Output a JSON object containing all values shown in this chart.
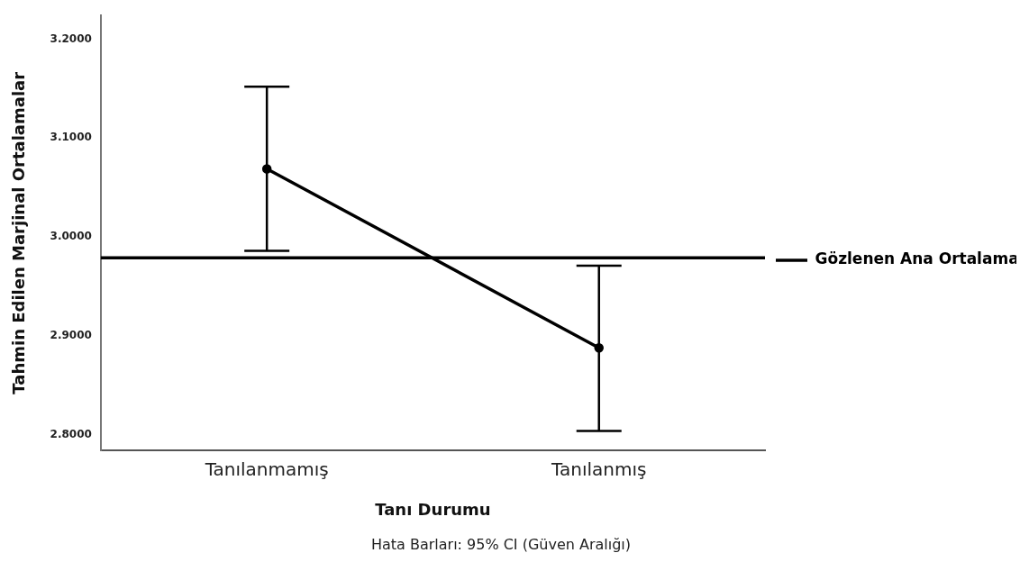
{
  "chart_data": {
    "type": "line",
    "xlabel": "Tanı Durumu",
    "ylabel": "Tahmin Edilen Marjinal Ortalamalar",
    "categories": [
      "Tanılanmamış",
      "Tanılanmış"
    ],
    "series": [
      {
        "color": "#000000",
        "values": [
          3.069,
          2.888
        ],
        "errors": [
          [
            2.986,
            3.152
          ],
          [
            2.804,
            2.971
          ]
        ]
      }
    ],
    "ylim": [
      2.784,
      3.224
    ],
    "yticks": [
      {
        "value": 2.8,
        "label": "2.8000"
      },
      {
        "value": 2.9,
        "label": "2.9000"
      },
      {
        "value": 3.0,
        "label": "3.0000"
      },
      {
        "value": 3.1,
        "label": "3.1000"
      },
      {
        "value": 3.2,
        "label": "3.2000"
      }
    ],
    "ref_lines": [
      {
        "axis": "y",
        "value": 2.979,
        "label": "Gözlenen Ana Ortalama",
        "color": "#000000"
      }
    ],
    "legend": "right",
    "marker": "circle",
    "annotations": [
      "Hata Barları: 95% CI (Güven Aralığı)"
    ]
  }
}
